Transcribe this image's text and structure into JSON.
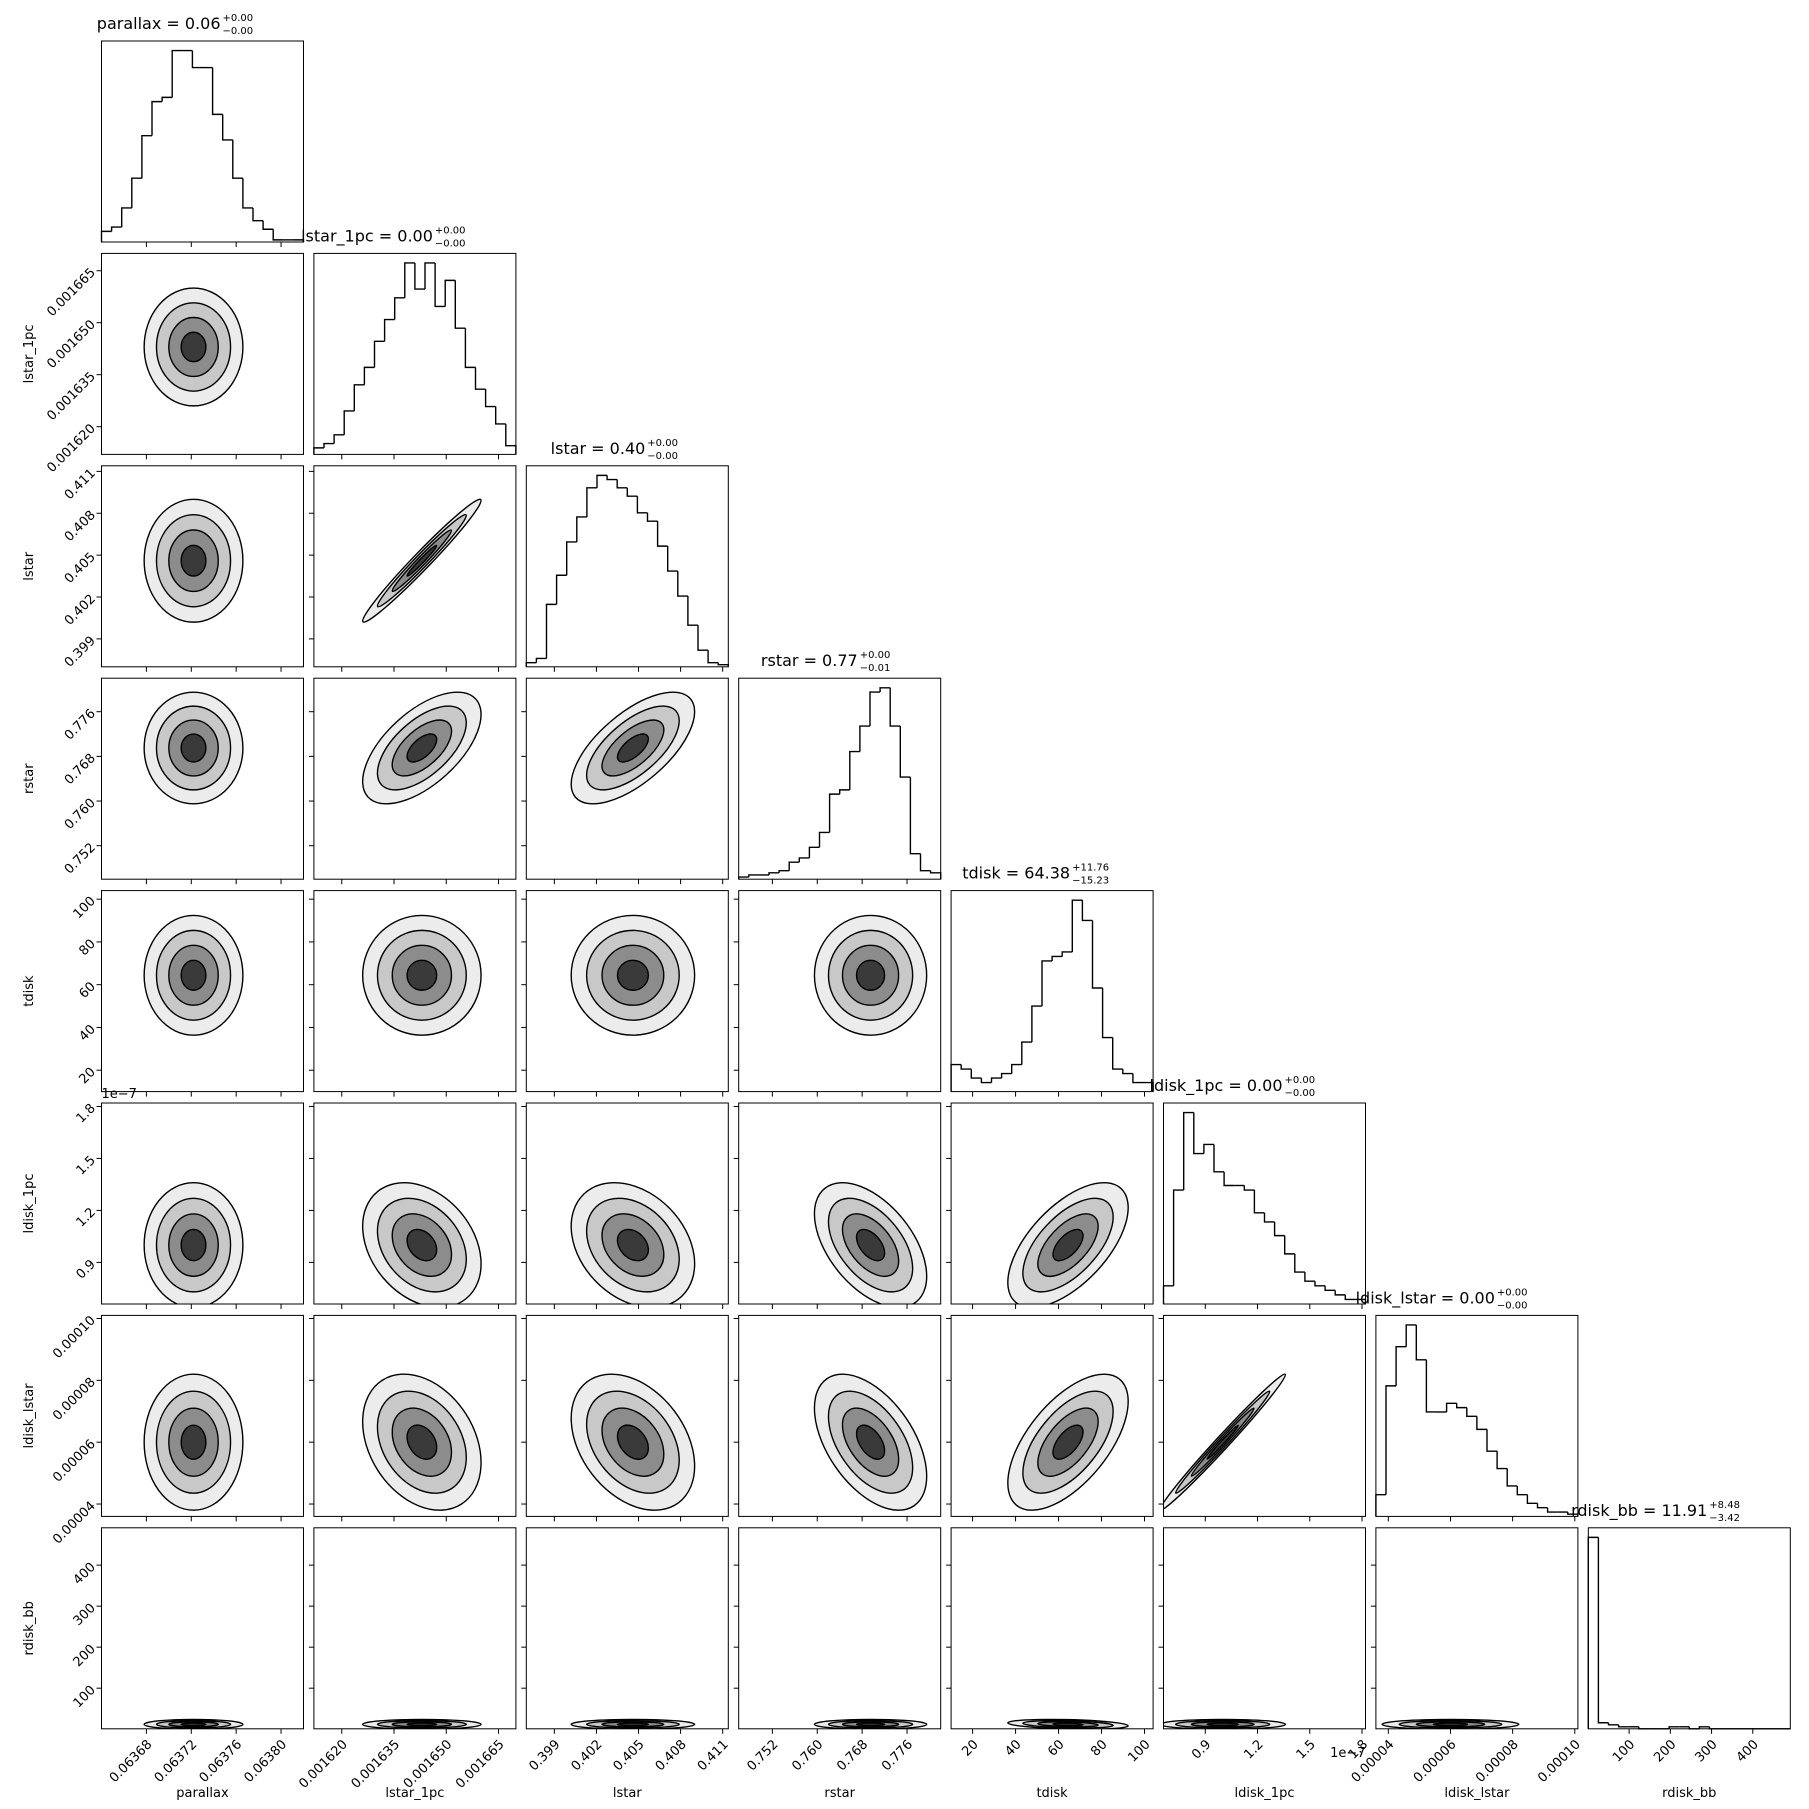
{
  "chart_data": {
    "type": "corner",
    "parameters": [
      {
        "name": "parallax",
        "title": "parallax = 0.06",
        "upper": "+0.00",
        "lower": "−0.00",
        "lim": [
          0.06364,
          0.06382
        ],
        "ticks": [
          0.06368,
          0.06372,
          0.06376,
          {
            "value": 0.0638,
            "label": "0.06380"
          }
        ],
        "bins": [
          0.06364,
          0.063649,
          0.063658,
          0.063667,
          0.063676,
          0.063685,
          0.063694,
          0.063703,
          0.063712,
          0.063721,
          0.06373,
          0.063739,
          0.063748,
          0.063757,
          0.063766,
          0.063775,
          0.063784,
          0.063793,
          0.063802,
          0.063811,
          0.06382
        ],
        "counts": [
          5,
          7,
          16,
          30,
          50,
          66,
          68,
          90,
          90,
          82,
          82,
          60,
          48,
          30,
          16,
          10,
          6,
          1,
          1,
          1
        ],
        "center": 0.063722,
        "sd": 2.2e-05,
        "corr": []
      },
      {
        "name": "lstar_1pc",
        "title": "lstar_1pc = 0.00",
        "upper": "+0.00",
        "lower": "−0.00",
        "lim": [
          0.001612,
          0.00167
        ],
        "ticks": [
          {
            "value": 0.00162,
            "label": "0.001620"
          },
          0.001635,
          {
            "value": 0.00165,
            "label": "0.001650"
          },
          0.001665
        ],
        "bins": [
          0.001612,
          0.0016149,
          0.0016178,
          0.0016207,
          0.0016236,
          0.0016265,
          0.0016294,
          0.0016323,
          0.0016352,
          0.0016381,
          0.001641,
          0.0016439,
          0.0016468,
          0.0016497,
          0.0016526,
          0.0016555,
          0.0016584,
          0.0016613,
          0.0016642,
          0.0016671,
          0.00167
        ],
        "counts": [
          3,
          5,
          9,
          20,
          32,
          40,
          52,
          62,
          72,
          88,
          76,
          88,
          68,
          80,
          58,
          40,
          30,
          22,
          14,
          4
        ],
        "center": 0.001643,
        "sd": 8.5e-06,
        "corr": [
          0
        ]
      },
      {
        "name": "lstar",
        "title": "lstar = 0.40",
        "upper": "+0.00",
        "lower": "−0.00",
        "lim": [
          0.397,
          0.4114
        ],
        "ticks": [
          0.399,
          0.402,
          0.405,
          0.408,
          0.411
        ],
        "bins": [
          0.397,
          0.39772,
          0.39844,
          0.39916,
          0.39988,
          0.4006,
          0.40132,
          0.40204,
          0.40276,
          0.40348,
          0.4042,
          0.40492,
          0.40564,
          0.40636,
          0.40708,
          0.4078,
          0.40852,
          0.40924,
          0.40996,
          0.41068,
          0.4114
        ],
        "counts": [
          2,
          4,
          30,
          44,
          60,
          72,
          86,
          92,
          90,
          86,
          82,
          74,
          70,
          58,
          46,
          34,
          20,
          8,
          2,
          1
        ],
        "center": 0.4046,
        "sd": 0.0022,
        "corr": [
          0,
          0.98
        ]
      },
      {
        "name": "rstar",
        "title": "rstar = 0.77",
        "upper": "+0.00",
        "lower": "−0.01",
        "lim": [
          0.746,
          0.782
        ],
        "ticks": [
          0.752,
          {
            "value": 0.76,
            "label": "0.760"
          },
          0.768,
          0.776
        ],
        "bins": [
          0.746,
          0.7478,
          0.7496,
          0.7514,
          0.7532,
          0.755,
          0.7568,
          0.7586,
          0.7604,
          0.7622,
          0.764,
          0.7658,
          0.7676,
          0.7694,
          0.7712,
          0.773,
          0.7748,
          0.7766,
          0.7784,
          0.7802,
          0.782
        ],
        "counts": [
          1,
          2,
          2,
          3,
          4,
          8,
          10,
          15,
          22,
          40,
          42,
          60,
          72,
          88,
          90,
          72,
          48,
          12,
          4,
          3
        ],
        "center": 0.7695,
        "sd": 0.005,
        "corr": [
          0,
          0.6,
          0.65
        ]
      },
      {
        "name": "tdisk",
        "title": "tdisk = 64.38",
        "upper": "+11.76",
        "lower": "−15.23",
        "lim": [
          10,
          104
        ],
        "ticks": [
          20,
          40,
          60,
          80,
          100
        ],
        "bins": [
          10,
          14.7,
          19.4,
          24.1,
          28.8,
          33.5,
          38.2,
          42.9,
          47.6,
          52.3,
          57,
          61.7,
          66.4,
          71.1,
          75.8,
          80.5,
          85.2,
          89.9,
          94.6,
          99.3,
          104
        ],
        "counts": [
          12,
          10,
          6,
          4,
          6,
          8,
          12,
          22,
          38,
          58,
          60,
          62,
          85,
          76,
          46,
          24,
          10,
          8,
          4,
          4
        ],
        "center": 64.4,
        "sd": 14,
        "corr": [
          0,
          0,
          0,
          0
        ]
      },
      {
        "name": "ldisk_1pc",
        "title": "ldisk_1pc = 0.00",
        "upper": "+0.00",
        "lower": "−0.00",
        "offset": "1e−7",
        "lim": [
          6.6e-08,
          1.82e-07
        ],
        "ticks": [
          {
            "value": 9e-08,
            "label": "0.9"
          },
          {
            "value": 1.2e-07,
            "label": "1.2"
          },
          {
            "value": 1.5e-07,
            "label": "1.5"
          },
          {
            "value": 1.8e-07,
            "label": "1.8"
          }
        ],
        "bins": [
          6.6e-08,
          7.18e-08,
          7.76e-08,
          8.34e-08,
          8.92e-08,
          9.5e-08,
          1.008e-07,
          1.066e-07,
          1.124e-07,
          1.182e-07,
          1.24e-07,
          1.298e-07,
          1.356e-07,
          1.414e-07,
          1.472e-07,
          1.53e-07,
          1.588e-07,
          1.646e-07,
          1.704e-07,
          1.762e-07,
          1.82e-07
        ],
        "counts": [
          8,
          50,
          84,
          66,
          70,
          58,
          52,
          52,
          50,
          40,
          36,
          30,
          22,
          14,
          10,
          8,
          6,
          4,
          2,
          2
        ],
        "center": 1e-07,
        "sd": 1.8e-08,
        "corr": [
          0,
          -0.3,
          -0.3,
          -0.5,
          0.6
        ]
      },
      {
        "name": "ldisk_lstar",
        "title": "ldisk_lstar = 0.00",
        "upper": "+0.00",
        "lower": "−0.00",
        "lim": [
          3.6e-05,
          0.000101
        ],
        "ticks": [
          4e-05,
          6e-05,
          8e-05,
          {
            "value": 0.0001,
            "label": "0.00010"
          }
        ],
        "bins": [
          3.6e-05,
          3.925e-05,
          4.25e-05,
          4.575e-05,
          4.9e-05,
          5.225e-05,
          5.55e-05,
          5.875e-05,
          6.2e-05,
          6.525e-05,
          6.85e-05,
          7.175e-05,
          7.5e-05,
          7.825e-05,
          8.15e-05,
          8.475e-05,
          8.8e-05,
          9.125e-05,
          9.45e-05,
          9.775e-05,
          0.000101
        ],
        "counts": [
          10,
          60,
          78,
          88,
          72,
          48,
          48,
          52,
          50,
          46,
          40,
          30,
          22,
          14,
          10,
          6,
          4,
          2,
          2,
          1
        ],
        "center": 6e-05,
        "sd": 1.1e-05,
        "corr": [
          0,
          -0.3,
          -0.35,
          -0.5,
          0.6,
          0.99
        ]
      },
      {
        "name": "rdisk_bb",
        "title": "rdisk_bb = 11.91",
        "upper": "+8.48",
        "lower": "−3.42",
        "lim": [
          1,
          491
        ],
        "ticks": [
          100,
          200,
          300,
          400
        ],
        "bins": [
          1,
          25.5,
          50,
          74.5,
          99,
          123.5,
          148,
          172.5,
          197,
          221.5,
          246,
          270.5,
          295,
          319.5,
          344,
          368.5,
          393,
          417.5,
          442,
          466.5,
          491
        ],
        "counts": [
          95,
          3,
          2,
          1,
          1,
          0,
          0,
          0,
          1,
          1,
          0,
          1,
          0,
          0,
          0,
          0,
          0,
          0,
          0,
          0
        ],
        "center": 11.9,
        "sd": 6,
        "corr": [
          0,
          0,
          0,
          0,
          -0.3,
          0,
          0
        ]
      }
    ]
  }
}
